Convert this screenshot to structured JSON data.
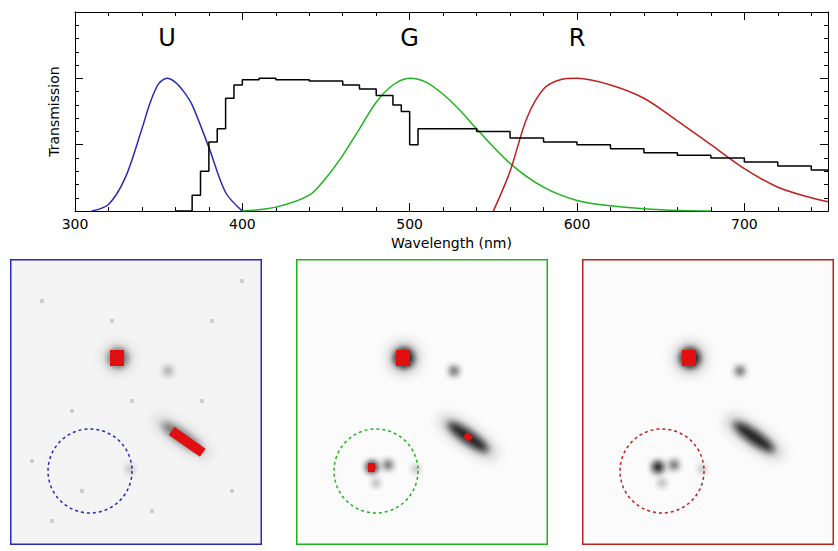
{
  "chart_data": {
    "type": "line",
    "x_label": "Wavelength (nm)",
    "y_label": "Transmission",
    "xlim": [
      300,
      750
    ],
    "xticks": [
      300,
      400,
      500,
      600,
      700
    ],
    "ylim": [
      0,
      1.5
    ],
    "yticks": [
      0,
      0.5,
      1,
      1.5
    ],
    "tick_labels": "x",
    "grid": false,
    "series": [
      {
        "name": "U",
        "color": "#2a2ab8",
        "line_style": "solid",
        "marker": "none",
        "x": [
          310,
          320,
          330,
          340,
          345,
          350,
          355,
          360,
          365,
          370,
          380,
          390,
          400
        ],
        "values": [
          0,
          0.05,
          0.25,
          0.62,
          0.82,
          0.96,
          1.0,
          0.97,
          0.9,
          0.8,
          0.48,
          0.14,
          0
        ]
      },
      {
        "name": "G",
        "color": "#1fb31f",
        "line_style": "solid",
        "marker": "none",
        "x": [
          400,
          420,
          440,
          450,
          460,
          470,
          480,
          490,
          500,
          510,
          520,
          530,
          540,
          560,
          580,
          600,
          620,
          650,
          680
        ],
        "values": [
          0,
          0.03,
          0.12,
          0.25,
          0.42,
          0.62,
          0.82,
          0.95,
          1.0,
          0.97,
          0.88,
          0.76,
          0.62,
          0.36,
          0.18,
          0.08,
          0.04,
          0.01,
          0
        ]
      },
      {
        "name": "R",
        "color": "#c01f1f",
        "line_style": "solid",
        "marker": "none",
        "x": [
          550,
          560,
          570,
          580,
          590,
          600,
          620,
          640,
          660,
          680,
          700,
          720,
          740,
          750
        ],
        "values": [
          0,
          0.3,
          0.7,
          0.92,
          0.99,
          1.0,
          0.95,
          0.85,
          0.68,
          0.5,
          0.32,
          0.18,
          0.1,
          0.07
        ]
      },
      {
        "color": "#000000",
        "line_style": "steps",
        "marker": "none",
        "x": [
          360,
          365,
          370,
          375,
          380,
          385,
          390,
          395,
          400,
          410,
          420,
          440,
          460,
          470,
          480,
          490,
          495,
          500,
          505,
          520,
          540,
          560,
          580,
          600,
          620,
          640,
          660,
          680,
          700,
          720,
          740,
          750
        ],
        "values": [
          0,
          0,
          0.12,
          0.3,
          0.52,
          0.62,
          0.85,
          0.95,
          0.99,
          1.0,
          0.99,
          0.98,
          0.95,
          0.92,
          0.87,
          0.8,
          0.75,
          0.5,
          0.62,
          0.62,
          0.6,
          0.55,
          0.52,
          0.5,
          0.47,
          0.44,
          0.42,
          0.4,
          0.37,
          0.34,
          0.31,
          0.3
        ]
      }
    ]
  }
}
